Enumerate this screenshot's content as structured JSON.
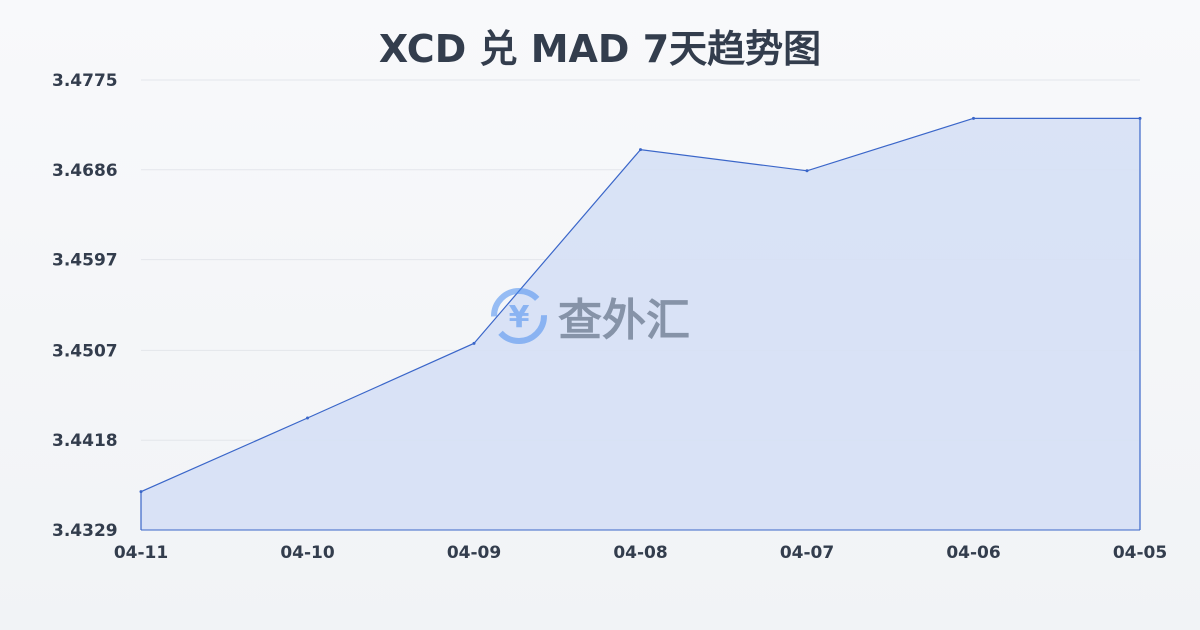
{
  "chart_data": {
    "type": "area",
    "title": "XCD 兑 MAD 7天趋势图",
    "categories": [
      "04-11",
      "04-10",
      "04-09",
      "04-08",
      "04-07",
      "04-06",
      "04-05"
    ],
    "values": [
      3.4367,
      3.444,
      3.4514,
      3.4706,
      3.4685,
      3.4737,
      3.4737
    ],
    "yticks": [
      "3.4329",
      "3.4418",
      "3.4507",
      "3.4597",
      "3.4686",
      "3.4775"
    ],
    "ylim": [
      3.4329,
      3.4775
    ],
    "grid": true,
    "line_color": "#3a66c9",
    "fill_color": "#d6e0f5"
  },
  "watermark": {
    "text": "查外汇",
    "icon": "yen-exchange-icon"
  }
}
